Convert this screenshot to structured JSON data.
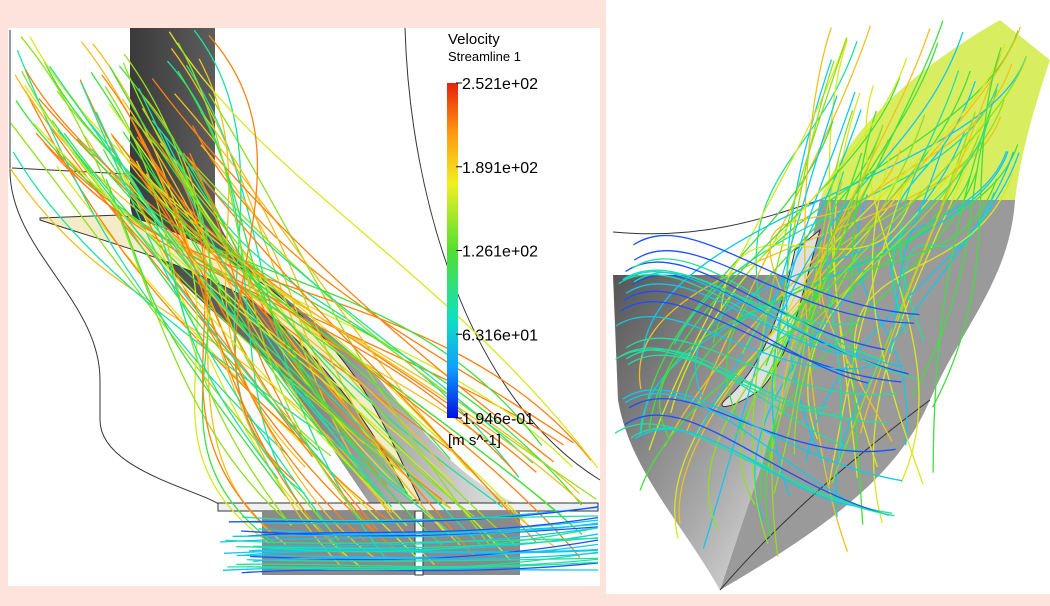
{
  "legend": {
    "title": "Velocity",
    "subtitle": "Streamline 1",
    "labels": [
      "2.521e+02",
      "1.891e+02",
      "1.261e+02",
      "6.316e+01",
      "1.946e-01"
    ],
    "unit": "[m s^-1]"
  }
}
